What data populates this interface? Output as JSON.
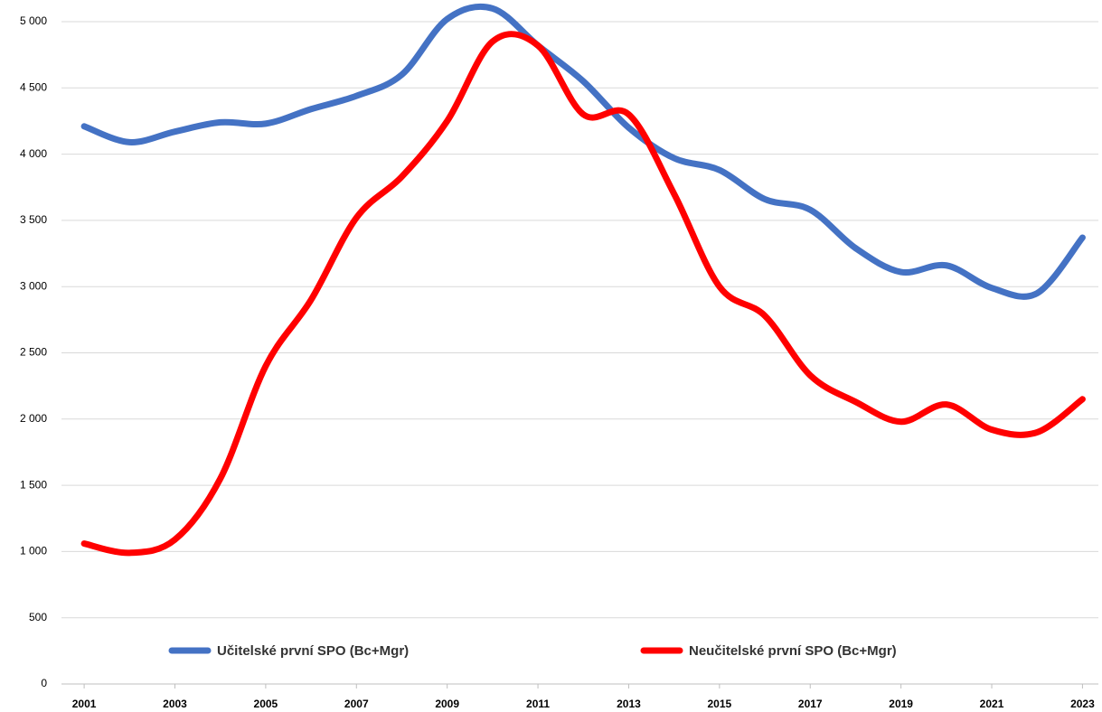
{
  "chart_data": {
    "type": "line",
    "x": [
      2001,
      2002,
      2003,
      2004,
      2005,
      2006,
      2007,
      2008,
      2009,
      2010,
      2011,
      2012,
      2013,
      2014,
      2015,
      2016,
      2017,
      2018,
      2019,
      2020,
      2021,
      2022,
      2023
    ],
    "xlim": [
      2000.5,
      2023.35
    ],
    "xticks": [
      2001,
      2003,
      2005,
      2007,
      2009,
      2011,
      2013,
      2015,
      2017,
      2019,
      2021,
      2023
    ],
    "ylim": [
      0,
      5000
    ],
    "yticks": [
      0,
      500,
      {
        "value": 1000,
        "label": "1 000"
      },
      {
        "value": 1500,
        "label": "1 500"
      },
      {
        "value": 2000,
        "label": "2 000"
      },
      {
        "value": 2500,
        "label": "2 500"
      },
      {
        "value": 3000,
        "label": "3 000"
      },
      {
        "value": 3500,
        "label": "3 500"
      },
      {
        "value": 4000,
        "label": "4 000"
      },
      {
        "value": 4500,
        "label": "4 500"
      },
      {
        "value": 5000,
        "label": "5 000"
      }
    ],
    "grid": true,
    "legend": "bottom",
    "series": [
      {
        "name": "Učitelské první SPO (Bc+Mgr)",
        "color": "#4472c4",
        "values": [
          4210,
          4090,
          4170,
          4240,
          4230,
          4340,
          4440,
          4600,
          5020,
          5100,
          4820,
          4550,
          4200,
          3970,
          3880,
          3660,
          3580,
          3290,
          3110,
          3160,
          2990,
          2950,
          3370
        ]
      },
      {
        "name": "Neučitelské první SPO (Bc+Mgr)",
        "color": "#ff0000",
        "values": [
          1060,
          990,
          1090,
          1550,
          2400,
          2900,
          3520,
          3830,
          4250,
          4850,
          4820,
          4300,
          4300,
          3700,
          3000,
          2780,
          2330,
          2130,
          1980,
          2110,
          1920,
          1900,
          2150
        ]
      }
    ]
  }
}
